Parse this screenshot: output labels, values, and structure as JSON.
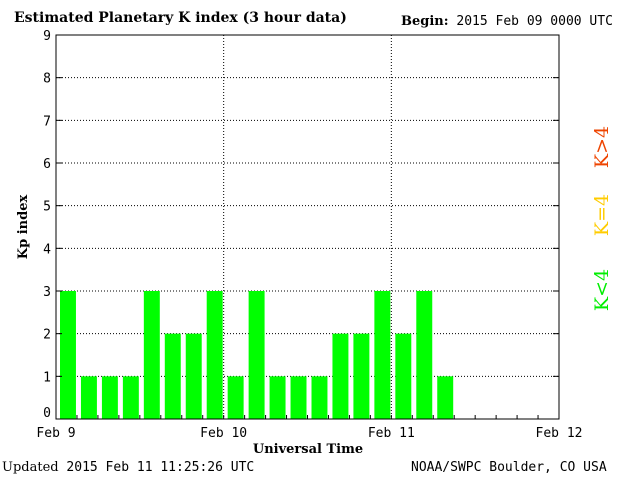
{
  "header": {
    "title": "Estimated Planetary K index (3 hour data)",
    "begin_label": "Begin:",
    "begin_value": "2015 Feb 09 0000 UTC"
  },
  "footer": {
    "updated_label": "Updated",
    "updated_value": "2015 Feb 11 11:25:26 UTC",
    "credit": "NOAA/SWPC Boulder, CO USA"
  },
  "legend": {
    "items": [
      {
        "label": "K<4",
        "color": "#00ee00"
      },
      {
        "label": "K=4",
        "color": "#ffcc00"
      },
      {
        "label": "K>4",
        "color": "#ee4400"
      }
    ]
  },
  "chart_data": {
    "type": "bar",
    "title": "Estimated Planetary K index (3 hour data)",
    "xlabel": "Universal Time",
    "ylabel": "Kp index",
    "ylim": [
      0,
      9
    ],
    "yticks": [
      "0",
      "1",
      "2",
      "3",
      "4",
      "5",
      "6",
      "7",
      "8",
      "9"
    ],
    "xticks": [
      "Feb 9",
      "Feb 10",
      "Feb 11",
      "Feb 12"
    ],
    "bar_interval": "3 hour",
    "grid": "dotted, day and Kp lines",
    "bar_color": "#00ff00",
    "values": [
      3,
      1,
      1,
      1,
      3,
      2,
      2,
      3,
      1,
      3,
      1,
      1,
      1,
      2,
      2,
      3,
      2,
      3,
      1
    ],
    "total_slots": 24
  }
}
